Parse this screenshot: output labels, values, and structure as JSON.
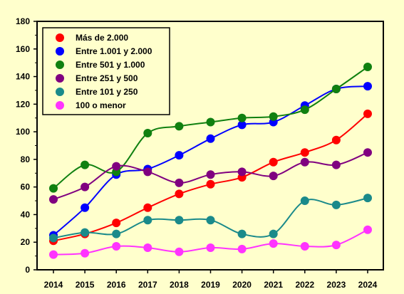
{
  "chart_data": {
    "type": "line",
    "title": "",
    "xlabel": "",
    "ylabel": "",
    "x": [
      2014,
      2015,
      2016,
      2017,
      2018,
      2019,
      2020,
      2021,
      2022,
      2023,
      2024
    ],
    "x_tick_labels": [
      "2014",
      "2015",
      "2016",
      "2017",
      "2018",
      "2019",
      "2020",
      "2021",
      "2022",
      "2023",
      "2024"
    ],
    "ylim": [
      0,
      180
    ],
    "y_ticks": [
      0,
      20,
      40,
      60,
      80,
      100,
      120,
      140,
      160,
      180
    ],
    "y_tick_labels": [
      "0",
      "20",
      "40",
      "60",
      "80",
      "100",
      "120",
      "140",
      "160",
      "180"
    ],
    "grid": false,
    "legend_position": "top-left",
    "series": [
      {
        "name": "Más de 2.000",
        "color": "#ff0000",
        "values": [
          21,
          26,
          34,
          45,
          55,
          62,
          67,
          78,
          85,
          94,
          113
        ]
      },
      {
        "name": "Entre 1.001 y 2.000",
        "color": "#0000ff",
        "values": [
          25,
          45,
          69,
          73,
          83,
          95,
          105,
          107,
          119,
          131,
          133
        ]
      },
      {
        "name": "Entre 501 y 1.000",
        "color": "#108010",
        "values": [
          59,
          76,
          71,
          99,
          104,
          107,
          110,
          111,
          116,
          131,
          147
        ]
      },
      {
        "name": "Entre 251 y 500",
        "color": "#800080",
        "values": [
          51,
          60,
          75,
          71,
          63,
          69,
          71,
          68,
          78,
          76,
          85
        ]
      },
      {
        "name": "Entre 101 y 250",
        "color": "#1a8a8a",
        "values": [
          23,
          27,
          26,
          36,
          36,
          36,
          26,
          26,
          50,
          47,
          52
        ]
      },
      {
        "name": "100 o menor",
        "color": "#ff33ff",
        "values": [
          11,
          12,
          17,
          16,
          13,
          16,
          15,
          19,
          17,
          18,
          29
        ]
      }
    ]
  }
}
